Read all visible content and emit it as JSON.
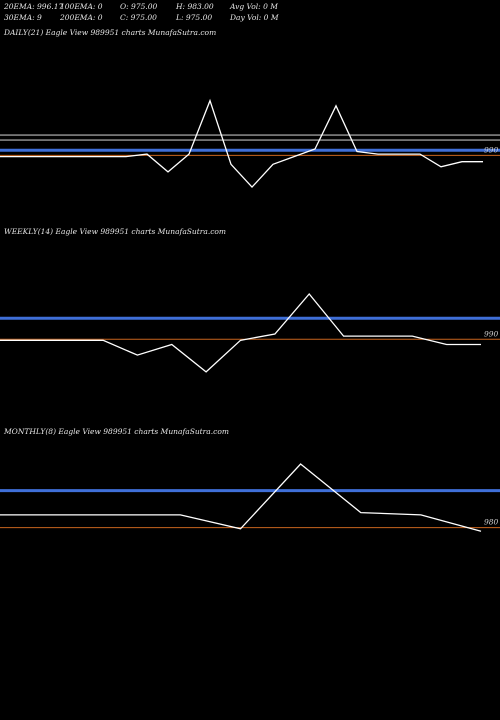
{
  "header": {
    "row1": [
      "20EMA: 996.17",
      "100EMA: 0",
      "O: 975.00",
      "H: 983.00",
      "Avg Vol: 0  M"
    ],
    "row2": [
      "30EMA: 9",
      "200EMA: 0",
      "C: 975.00",
      "L: 975.00",
      "Day Vol: 0  M"
    ]
  },
  "colors": {
    "background": "#000000",
    "price": "#ffffff",
    "ema_blue": "#3f6fd8",
    "ema_gray": "#9a9a9a",
    "ema_orange": "#c8641e"
  },
  "chart_data": [
    {
      "type": "line",
      "title": "DAILY(21) Eagle  View  989951 charts MunafaSutra.com",
      "level_label": "990",
      "ylim": [
        962,
        1010
      ],
      "series": [
        {
          "values": [
            983,
            983,
            983,
            983,
            983,
            983,
            983,
            984,
            977,
            984,
            1005,
            980,
            971,
            980,
            983,
            986,
            1003,
            985,
            984,
            984,
            984,
            979,
            981,
            981
          ]
        }
      ],
      "bands": {
        "blue": 985.5,
        "gray": [
          991.5,
          989.5
        ],
        "orange": 983.5
      }
    },
    {
      "type": "line",
      "title": "WEEKLY(14) Eagle  View  989951 charts MunafaSutra.com",
      "level_label": "990",
      "ylim": [
        955,
        1012
      ],
      "series": [
        {
          "values": [
            990,
            990,
            990,
            990,
            983,
            988,
            975,
            990,
            993,
            1012,
            992,
            992,
            992,
            988,
            988
          ]
        }
      ],
      "bands": {
        "blue": 1000.5,
        "orange": 990.5
      }
    },
    {
      "type": "line",
      "title": "MONTHLY(8) Eagle  View  989951 charts MunafaSutra.com",
      "level_label": "980",
      "ylim": [
        955,
        1012
      ],
      "series": [
        {
          "values": [
            990,
            990,
            990,
            990,
            984,
            1012,
            991,
            990,
            983
          ]
        }
      ],
      "bands": {
        "blue": 1000.5,
        "orange": 984.5
      }
    }
  ]
}
